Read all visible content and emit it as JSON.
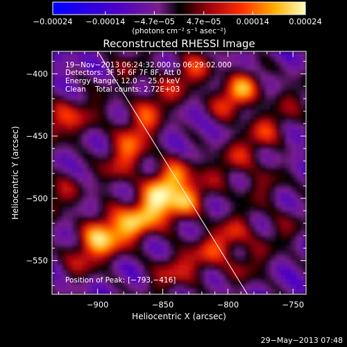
{
  "chart_data": {
    "type": "heatmap",
    "title": "Reconstructed RHESSI Image",
    "xlabel": "Heliocentric X (arcsec)",
    "ylabel": "Heliocentric Y (arcsec)",
    "xlim": [
      -935,
      -740
    ],
    "ylim": [
      -577,
      -382
    ],
    "x_ticks": [
      -900,
      -850,
      -800,
      -750
    ],
    "y_ticks": [
      -400,
      -450,
      -500,
      -550
    ],
    "x_tick_labels": [
      "−900",
      "−850",
      "−800",
      "−750"
    ],
    "y_tick_labels": [
      "−400",
      "−450",
      "−500",
      "−550"
    ],
    "colorbar": {
      "min": -0.00024,
      "max": 0.00024,
      "tick_values": [
        -0.00024,
        -0.00014,
        -4.7e-05,
        4.7e-05,
        0.00014,
        0.00024
      ],
      "tick_labels": [
        "−0.00024",
        "−0.00014",
        "−4.7e−05",
        "4.7e−05",
        "0.00014",
        "0.00024"
      ],
      "unit_label": "(photons cm⁻² s⁻¹ asec⁻²)"
    },
    "annotations": [
      "19−Nov−2013 06:24:32.000 to 06:29:02.000",
      "Detectors: 3F 5F 6F 7F 8F, Att 0",
      "Energy Range: 12.0 − 25.0 keV",
      "Clean    Total counts: 2.72E+03"
    ],
    "peak_label": "Position of Peak:",
    "peak_value": "[−793,−416]",
    "peak": [
      -793,
      -416
    ],
    "limb_line": {
      "x": [
        -900,
        -785
      ],
      "y": [
        -382,
        -577
      ]
    },
    "sources": [
      {
        "x": -793,
        "y": -416,
        "value": 0.00024
      },
      {
        "x": -827,
        "y": -398,
        "value": 0.00016
      },
      {
        "x": -771,
        "y": -445,
        "value": 0.00014
      },
      {
        "x": -847,
        "y": -487,
        "value": 0.00024
      },
      {
        "x": -833,
        "y": -503,
        "value": 0.00021
      },
      {
        "x": -862,
        "y": -513,
        "value": 0.00019
      },
      {
        "x": -880,
        "y": -470,
        "value": 0.00015
      },
      {
        "x": -870,
        "y": -448,
        "value": 0.00013
      },
      {
        "x": -857,
        "y": -425,
        "value": 0.00012
      },
      {
        "x": -898,
        "y": -525,
        "value": 0.00017
      },
      {
        "x": -908,
        "y": -548,
        "value": 0.00012
      },
      {
        "x": -882,
        "y": -530,
        "value": 0.00014
      },
      {
        "x": -930,
        "y": -500,
        "value": 0.00013
      },
      {
        "x": -935,
        "y": -440,
        "value": 0.00015
      },
      {
        "x": -910,
        "y": -435,
        "value": 0.00011
      },
      {
        "x": -875,
        "y": -395,
        "value": 0.0001
      },
      {
        "x": -797,
        "y": -470,
        "value": 0.00012
      },
      {
        "x": -772,
        "y": -490,
        "value": 0.00011
      },
      {
        "x": -800,
        "y": -530,
        "value": 0.00015
      },
      {
        "x": -785,
        "y": -555,
        "value": 0.00011
      },
      {
        "x": -845,
        "y": -560,
        "value": 0.00013
      },
      {
        "x": -820,
        "y": -548,
        "value": 0.0001
      },
      {
        "x": -755,
        "y": -525,
        "value": 9e-05
      },
      {
        "x": -745,
        "y": -415,
        "value": 8e-05
      }
    ]
  },
  "footer": {
    "timestamp": "29−May−2013 07:48"
  }
}
